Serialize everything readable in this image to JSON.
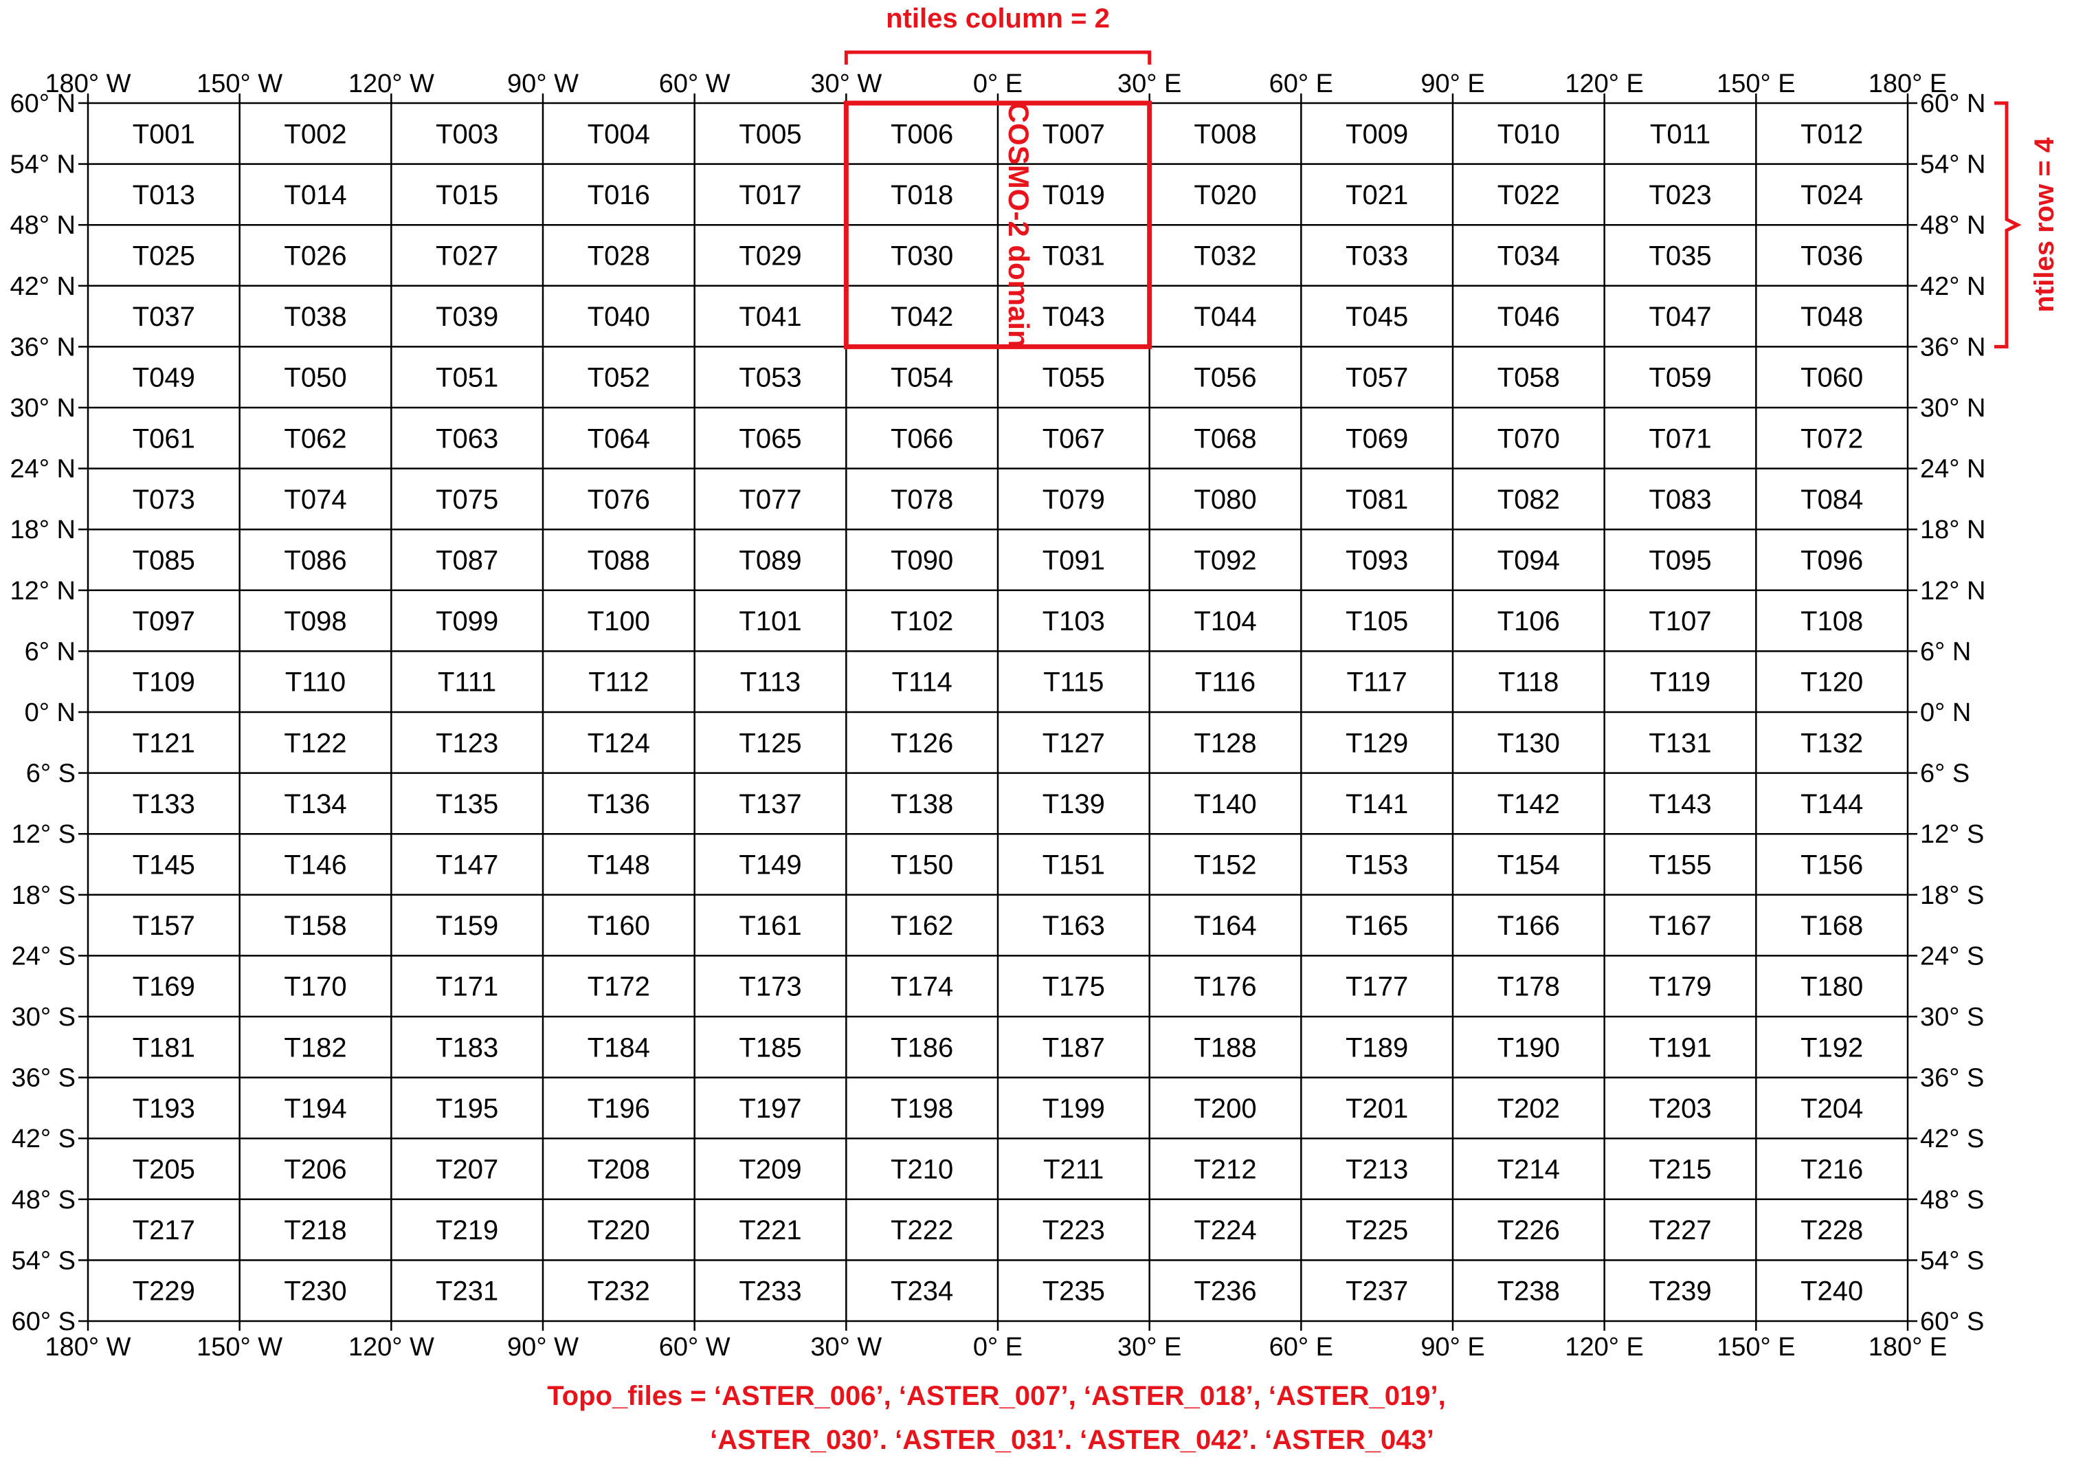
{
  "grid": {
    "rows": 20,
    "cols": 12,
    "tile_prefix": "T"
  },
  "axes": {
    "x_labels": [
      "180° W",
      "150° W",
      "120° W",
      "90° W",
      "60° W",
      "30° W",
      "0° E",
      "30° E",
      "60° E",
      "90° E",
      "120° E",
      "150° E",
      "180° E"
    ],
    "y_labels": [
      "60° N",
      "54° N",
      "48° N",
      "42° N",
      "36° N",
      "30° N",
      "24° N",
      "18° N",
      "12° N",
      "6° N",
      "0° N",
      "6° S",
      "12° S",
      "18° S",
      "24° S",
      "30° S",
      "36° S",
      "42° S",
      "48° S",
      "54° S",
      "60° S"
    ]
  },
  "highlight": {
    "label": "COSMO-2 domain",
    "col_start": 5,
    "col_end": 7,
    "row_start": 0,
    "row_end": 4,
    "color": "#e8141b"
  },
  "annotations": {
    "ntiles_column": "ntiles  column = 2",
    "ntiles_row": "ntiles  row = 4",
    "topo_line1": "Topo_files = ‘ASTER_006’, ‘ASTER_007’, ‘ASTER_018’, ‘ASTER_019’,",
    "topo_line2": "‘ASTER_030’. ‘ASTER_031’. ‘ASTER_042’. ‘ASTER_043’"
  }
}
